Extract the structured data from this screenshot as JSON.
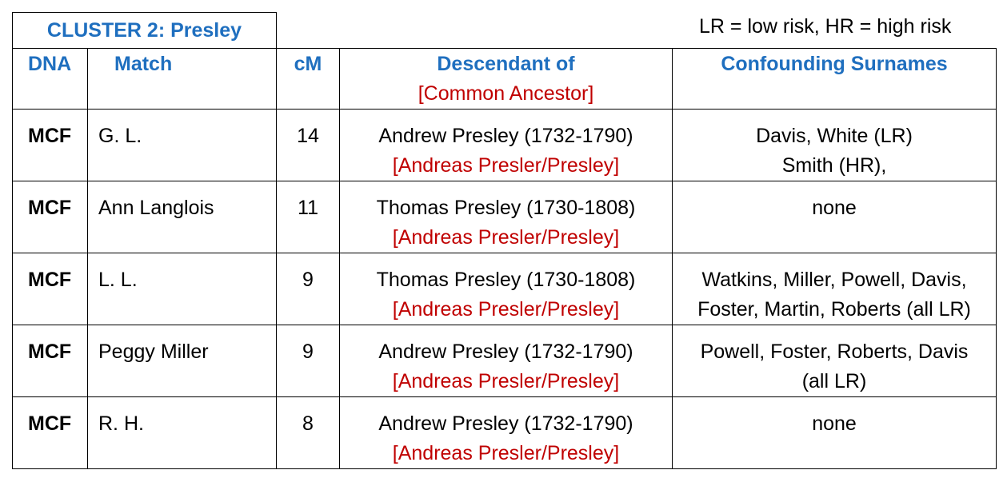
{
  "cluster_title": "CLUSTER 2:  Presley",
  "legend": "LR = low risk, HR = high risk",
  "headers": {
    "dna": "DNA",
    "match": "Match",
    "cm": "cM",
    "descendant": "Descendant of",
    "common_ancestor": "[Common Ancestor]",
    "confounding": "Confounding Surnames"
  },
  "rows": [
    {
      "dna": "MCF",
      "match": "G. L.",
      "cm": "14",
      "descendant": "Andrew Presley (1732-1790)",
      "ancestor": "[Andreas Presler/Presley]",
      "confounding": [
        "Davis, White (LR)",
        "Smith (HR),"
      ]
    },
    {
      "dna": "MCF",
      "match": "Ann Langlois",
      "cm": "11",
      "descendant": "Thomas Presley (1730-1808)",
      "ancestor": "[Andreas Presler/Presley]",
      "confounding": [
        "none",
        ""
      ]
    },
    {
      "dna": "MCF",
      "match": "L. L.",
      "cm": "9",
      "descendant": "Thomas Presley (1730-1808)",
      "ancestor": "[Andreas Presler/Presley]",
      "confounding": [
        "Watkins, Miller, Powell, Davis,",
        "Foster, Martin, Roberts (all LR)"
      ]
    },
    {
      "dna": "MCF",
      "match": "Peggy Miller",
      "cm": "9",
      "descendant": "Andrew Presley (1732-1790)",
      "ancestor": "[Andreas Presler/Presley]",
      "confounding": [
        "Powell, Foster, Roberts, Davis",
        "(all LR)"
      ]
    },
    {
      "dna": "MCF",
      "match": "R. H.",
      "cm": "8",
      "descendant": "Andrew Presley (1732-1790)",
      "ancestor": "[Andreas Presler/Presley]",
      "confounding": [
        "none",
        ""
      ]
    }
  ],
  "colors": {
    "header_blue": "#1f6fbf",
    "ancestor_red": "#c00000"
  }
}
